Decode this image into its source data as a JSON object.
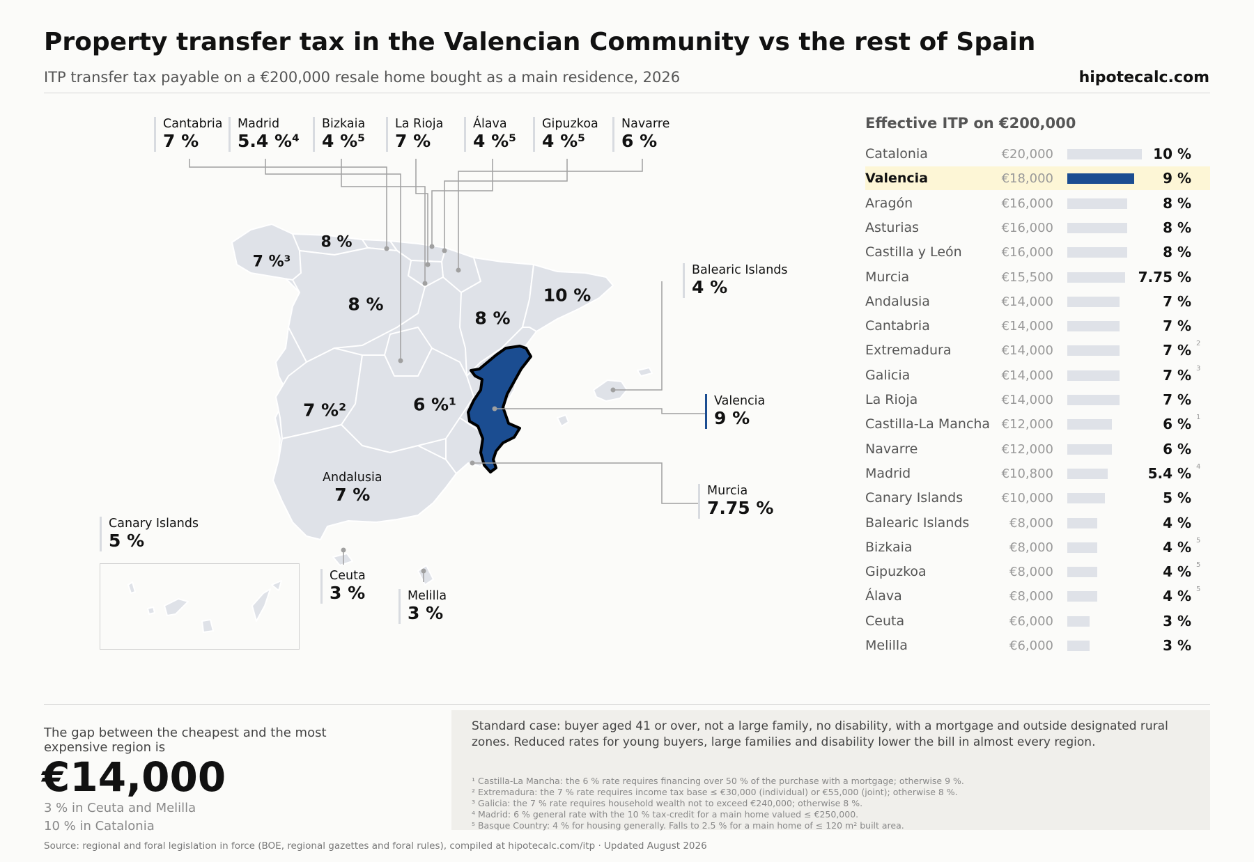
{
  "header": {
    "title": "Property transfer tax in the Valencian Community vs the rest of Spain",
    "subtitle": "ITP transfer tax payable on a €200,000 resale home bought as a main residence, 2026",
    "brand": "hipotecalc.com"
  },
  "map": {
    "region_labels": [
      {
        "text": "8 %"
      },
      {
        "text": "7 %³"
      },
      {
        "text": "8 %"
      },
      {
        "text": "10 %"
      },
      {
        "text": "8 %"
      },
      {
        "text": "7 %²"
      },
      {
        "text": "6 %¹"
      }
    ],
    "top_callouts": [
      {
        "name": "Cantabria",
        "rate": "7 %"
      },
      {
        "name": "Madrid",
        "rate": "5.4 %⁴"
      },
      {
        "name": "Bizkaia",
        "rate": "4 %⁵"
      },
      {
        "name": "La Rioja",
        "rate": "7 %"
      },
      {
        "name": "Álava",
        "rate": "4 %⁵"
      },
      {
        "name": "Gipuzkoa",
        "rate": "4 %⁵"
      },
      {
        "name": "Navarre",
        "rate": "6 %"
      }
    ],
    "side_callouts": [
      {
        "name": "Balearic Islands",
        "rate": "4 %"
      },
      {
        "name": "Valencia",
        "rate": "9 %",
        "highlight": true
      },
      {
        "name": "Murcia",
        "rate": "7.75 %"
      },
      {
        "name": "Andalusia",
        "rate": "7 %"
      },
      {
        "name": "Canary Islands",
        "rate": "5 %"
      },
      {
        "name": "Ceuta",
        "rate": "3 %"
      },
      {
        "name": "Melilla",
        "rate": "3 %"
      }
    ],
    "colors": {
      "land": "#dfe2e8",
      "highlight": "#1b4d91",
      "leader": "#a0a0a0"
    }
  },
  "chart_data": {
    "type": "bar",
    "title": "Effective ITP on €200,000",
    "categories": [
      "Catalonia",
      "Valencia",
      "Aragón",
      "Asturias",
      "Castilla y León",
      "Murcia",
      "Andalusia",
      "Cantabria",
      "Extremadura",
      "Galicia",
      "La Rioja",
      "Castilla-La Mancha",
      "Navarre",
      "Madrid",
      "Canary Islands",
      "Balearic Islands",
      "Bizkaia",
      "Gipuzkoa",
      "Álava",
      "Ceuta",
      "Melilla"
    ],
    "amounts": [
      "€20,000",
      "€18,000",
      "€16,000",
      "€16,000",
      "€16,000",
      "€15,500",
      "€14,000",
      "€14,000",
      "€14,000",
      "€14,000",
      "€14,000",
      "€12,000",
      "€12,000",
      "€10,800",
      "€10,000",
      "€8,000",
      "€8,000",
      "€8,000",
      "€8,000",
      "€6,000",
      "€6,000"
    ],
    "values": [
      10,
      9,
      8,
      8,
      8,
      7.75,
      7,
      7,
      7,
      7,
      7,
      6,
      6,
      5.4,
      5,
      4,
      4,
      4,
      4,
      3,
      3
    ],
    "rate_labels": [
      "10 %",
      "9 %",
      "8 %",
      "8 %",
      "8 %",
      "7.75 %",
      "7 %",
      "7 %",
      "7 %",
      "7 %",
      "7 %",
      "6 %",
      "6 %",
      "5.4 %",
      "5 %",
      "4 %",
      "4 %",
      "4 %",
      "4 %",
      "3 %",
      "3 %"
    ],
    "notes": [
      "",
      "",
      "",
      "",
      "",
      "",
      "",
      "",
      "2",
      "3",
      "",
      "1",
      "",
      "4",
      "",
      "",
      "5",
      "5",
      "5",
      "",
      ""
    ],
    "highlight": "Valencia",
    "colors": {
      "bar": "#dfe2e8",
      "highlight_bar": "#1b4d91",
      "highlight_row": "#fdf6d6"
    }
  },
  "summary": {
    "gap_label": "The gap between the cheapest and the most expensive region is",
    "gap_value": "€14,000",
    "low": "3 % in Ceuta and Melilla",
    "high": "10 % in Catalonia"
  },
  "notes": {
    "standard_case": "Standard case: buyer aged 41 or over, not a large family, no disability, with a mortgage and outside designated rural zones. Reduced rates for young buyers, large families and disability lower the bill in almost every region.",
    "footnotes": [
      "¹ Castilla-La Mancha: the 6 % rate requires financing over 50 % of the purchase with a mortgage; otherwise 9 %.",
      "² Extremadura: the 7 % rate requires income tax base ≤ €30,000 (individual) or €55,000 (joint); otherwise 8 %.",
      "³ Galicia: the 7 % rate requires household wealth not to exceed €240,000; otherwise 8 %.",
      "⁴ Madrid: 6 % general rate with the 10 % tax-credit for a main home valued ≤ €250,000.",
      "⁵ Basque Country: 4 % for housing generally. Falls to 2.5 % for a main home of ≤ 120 m² built area."
    ]
  },
  "source": "Source: regional and foral legislation in force (BOE, regional gazettes and foral rules), compiled at hipotecalc.com/itp · Updated August 2026"
}
